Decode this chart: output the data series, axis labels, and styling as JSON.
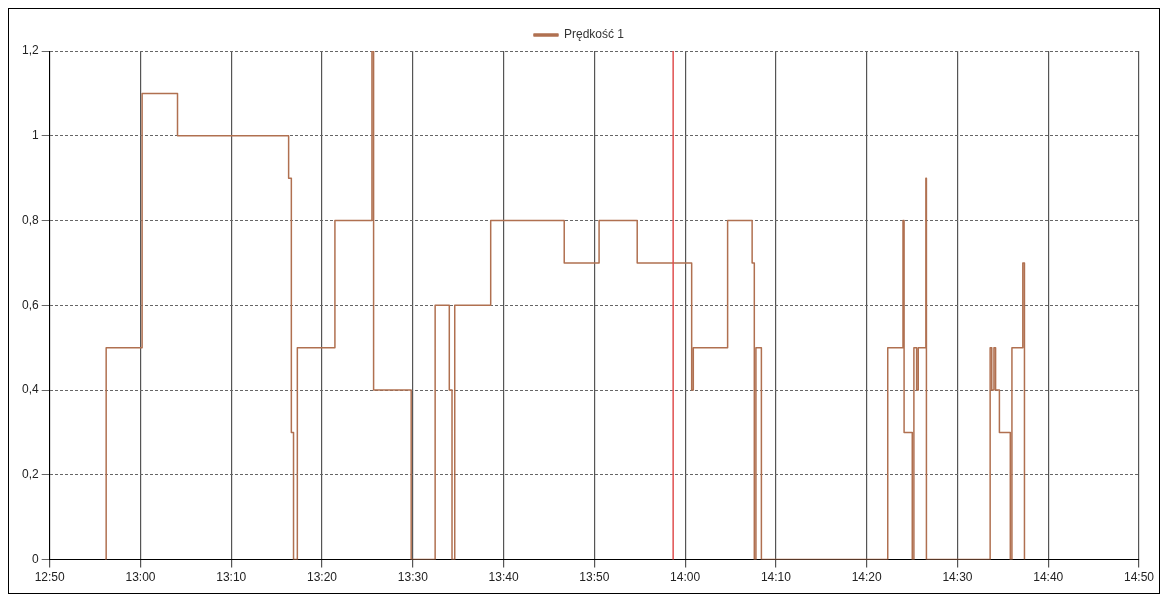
{
  "chart_data": {
    "type": "step",
    "x": [
      12.935,
      12.937,
      13.003,
      13.068,
      13.272,
      13.277,
      13.281,
      13.288,
      13.357,
      13.425,
      13.428,
      13.497,
      13.541,
      13.567,
      13.572,
      13.577,
      13.643,
      13.778,
      13.842,
      13.912,
      14.012,
      14.015,
      14.078,
      14.123,
      14.127,
      14.13,
      14.14,
      14.372,
      14.4,
      14.402,
      14.417,
      14.42,
      14.425,
      14.428,
      14.442,
      14.443,
      14.56,
      14.563,
      14.567,
      14.57,
      14.577,
      14.597,
      14.6,
      14.62,
      14.623
    ],
    "series": [
      {
        "name": "Prędkość 1",
        "color": "#b07050",
        "values": [
          0,
          0.5,
          1.1,
          1.0,
          0.9,
          0.3,
          0,
          0.5,
          0.8,
          1.2,
          0.4,
          0,
          0.6,
          0.4,
          0,
          0.6,
          0.8,
          0.7,
          0.8,
          0.7,
          0.4,
          0.5,
          0.8,
          0.7,
          0,
          0.5,
          0,
          0.5,
          0.8,
          0.3,
          0,
          0.5,
          0.4,
          0.5,
          0.9,
          0,
          0.5,
          0.4,
          0.5,
          0.4,
          0.3,
          0,
          0.5,
          0.7,
          0
        ]
      }
    ],
    "xlim": [
      12.8333,
      14.8333
    ],
    "xticks": [
      {
        "value": 12.8333,
        "label": "12:50"
      },
      {
        "value": 13,
        "label": "13:00"
      },
      {
        "value": 13.1667,
        "label": "13:10"
      },
      {
        "value": 13.3333,
        "label": "13:20"
      },
      {
        "value": 13.5,
        "label": "13:30"
      },
      {
        "value": 13.6667,
        "label": "13:40"
      },
      {
        "value": 13.8333,
        "label": "13:50"
      },
      {
        "value": 14,
        "label": "14:00"
      },
      {
        "value": 14.1667,
        "label": "14:10"
      },
      {
        "value": 14.3333,
        "label": "14:20"
      },
      {
        "value": 14.5,
        "label": "14:30"
      },
      {
        "value": 14.6667,
        "label": "14:40"
      },
      {
        "value": 14.8333,
        "label": "14:50"
      }
    ],
    "ylim": [
      0,
      1.2
    ],
    "yticks": [
      0,
      {
        "value": 0.2,
        "label": "0,2"
      },
      {
        "value": 0.4,
        "label": "0,4"
      },
      {
        "value": 0.6,
        "label": "0,6"
      },
      {
        "value": 0.8,
        "label": "0,8"
      },
      1,
      {
        "value": 1.2,
        "label": "1,2"
      }
    ],
    "ref_lines": [
      {
        "axis": "x",
        "value": 13.978,
        "color": "#e05050"
      }
    ],
    "grid": true,
    "legend": "top"
  }
}
